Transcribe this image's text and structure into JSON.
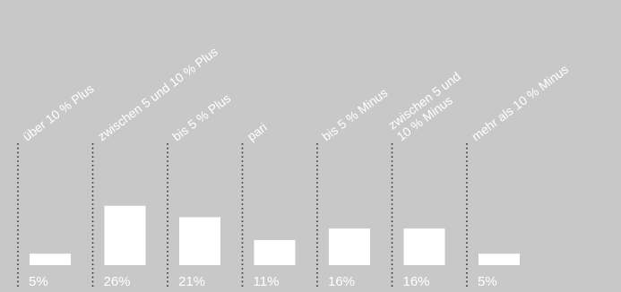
{
  "chart_data": {
    "type": "bar",
    "categories": [
      [
        "über 10 % Plus"
      ],
      [
        "zwischen 5 und 10 % Plus"
      ],
      [
        "bis 5 % Plus"
      ],
      [
        "pari"
      ],
      [
        "bis 5 % Minus"
      ],
      [
        "zwischen 5 und",
        "10 % Minus"
      ],
      [
        "mehr als 10 % Minus"
      ]
    ],
    "values": [
      5,
      26,
      21,
      11,
      16,
      16,
      5
    ],
    "value_labels": [
      "5%",
      "26%",
      "21%",
      "11%",
      "16%",
      "16%",
      "5%"
    ],
    "colors": {
      "background": "#c8c8c8",
      "bar": "#ffffff",
      "text": "#ffffff",
      "separator": "#333333"
    }
  }
}
